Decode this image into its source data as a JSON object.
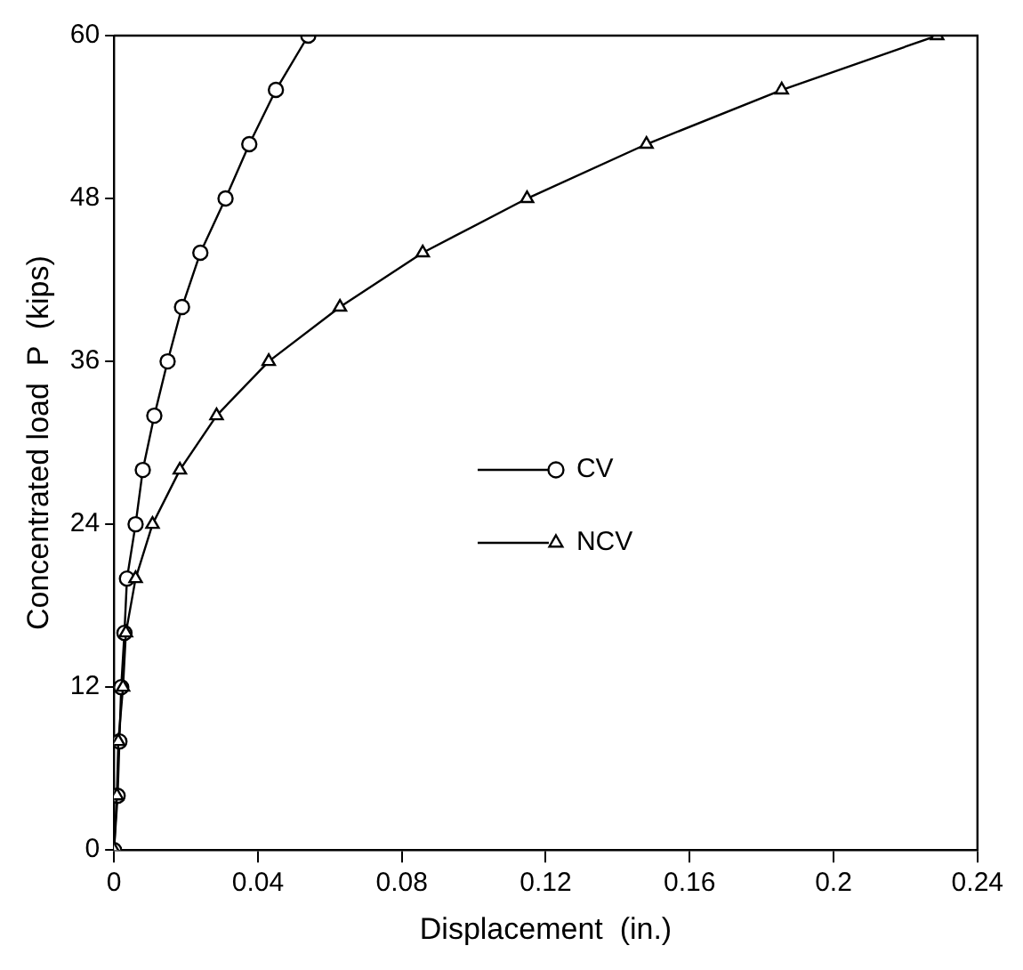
{
  "chart_data": {
    "type": "line",
    "xlabel": "Displacement  (in.)",
    "ylabel": "Concentrated load  P  (kips)",
    "xlim": [
      0,
      0.24
    ],
    "xticks": [
      0,
      0.04,
      0.08,
      0.12,
      0.16,
      0.2,
      0.24
    ],
    "ylim": [
      0,
      60
    ],
    "yticks": [
      0,
      12,
      24,
      36,
      48,
      60
    ],
    "grid": false,
    "legend": "right",
    "line_style": "solid",
    "series": [
      {
        "name": "CV",
        "color": "#000000",
        "marker": "circle",
        "x": [
          0,
          0.001,
          0.0015,
          0.002,
          0.0029,
          0.0036,
          0.006,
          0.008,
          0.0112,
          0.0149,
          0.0189,
          0.024,
          0.031,
          0.0376,
          0.045,
          0.054
        ],
        "values": [
          0,
          4,
          8,
          12,
          16,
          20,
          24,
          28,
          32,
          36,
          40,
          44,
          48,
          52,
          56,
          60
        ]
      },
      {
        "name": "NCV",
        "color": "#000000",
        "marker": "triangle",
        "x": [
          0,
          0.0008,
          0.0012,
          0.0025,
          0.0033,
          0.006,
          0.0107,
          0.0183,
          0.0285,
          0.043,
          0.0628,
          0.0858,
          0.1148,
          0.148,
          0.1856,
          0.2288
        ],
        "values": [
          0,
          4,
          8,
          12,
          16,
          20,
          24,
          28,
          32,
          36,
          40,
          44,
          48,
          52,
          56,
          60
        ]
      }
    ]
  }
}
